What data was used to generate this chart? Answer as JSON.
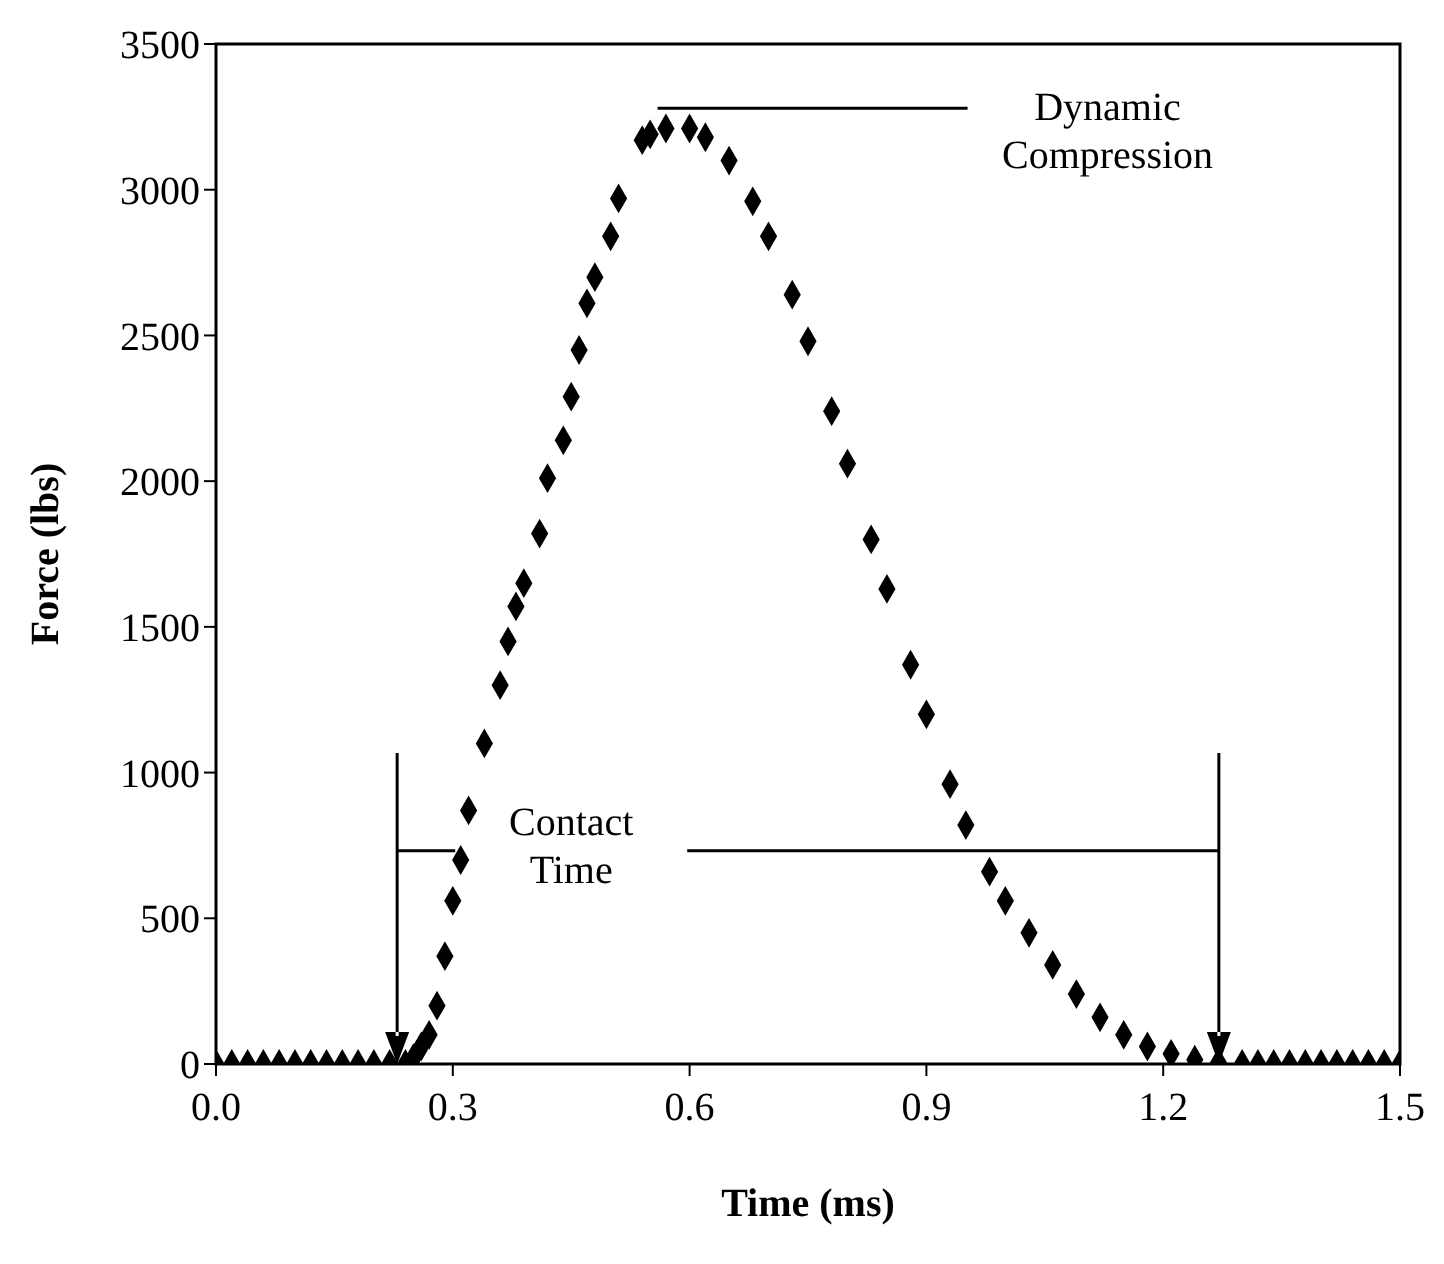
{
  "chart_data": {
    "type": "scatter",
    "xlabel": "Time (ms)",
    "ylabel": "Force (lbs)",
    "x": [
      0,
      0.02,
      0.04,
      0.06,
      0.08,
      0.1,
      0.12,
      0.14,
      0.16,
      0.18,
      0.2,
      0.22,
      0.24,
      0.25,
      0.26,
      0.27,
      0.28,
      0.29,
      0.3,
      0.31,
      0.32,
      0.34,
      0.36,
      0.37,
      0.38,
      0.39,
      0.41,
      0.42,
      0.44,
      0.45,
      0.46,
      0.47,
      0.48,
      0.5,
      0.51,
      0.54,
      0.55,
      0.57,
      0.6,
      0.62,
      0.65,
      0.68,
      0.7,
      0.73,
      0.75,
      0.78,
      0.8,
      0.83,
      0.85,
      0.88,
      0.9,
      0.93,
      0.95,
      0.98,
      1.0,
      1.03,
      1.06,
      1.09,
      1.12,
      1.15,
      1.18,
      1.21,
      1.24,
      1.27,
      1.3,
      1.32,
      1.34,
      1.36,
      1.38,
      1.4,
      1.42,
      1.44,
      1.46,
      1.48,
      1.5
    ],
    "values": [
      0,
      0,
      0,
      0,
      0,
      0,
      0,
      0,
      0,
      0,
      0,
      0,
      0,
      20,
      60,
      100,
      200,
      370,
      560,
      700,
      870,
      1100,
      1300,
      1450,
      1570,
      1650,
      1820,
      2010,
      2140,
      2290,
      2450,
      2610,
      2700,
      2840,
      2970,
      3170,
      3190,
      3210,
      3210,
      3180,
      3100,
      2960,
      2840,
      2640,
      2480,
      2240,
      2060,
      1800,
      1630,
      1370,
      1200,
      960,
      820,
      660,
      560,
      450,
      340,
      240,
      160,
      100,
      60,
      35,
      15,
      5,
      0,
      0,
      0,
      0,
      0,
      0,
      0,
      0,
      0,
      0,
      0
    ],
    "color": "#000000",
    "marker": "diamond",
    "xlim": [
      0,
      1.5
    ],
    "xticks": [
      {
        "value": 0,
        "label": "0.0"
      },
      {
        "value": 0.3,
        "label": "0.3"
      },
      {
        "value": 0.6,
        "label": "0.6"
      },
      {
        "value": 0.9,
        "label": "0.9"
      },
      {
        "value": 1.2,
        "label": "1.2"
      },
      {
        "value": 1.5,
        "label": "1.5"
      }
    ],
    "ylim": [
      0,
      3500
    ],
    "yticks": [
      0,
      500,
      1000,
      1500,
      2000,
      2500,
      3000,
      3500
    ],
    "annotations": [
      "Contact Time",
      "Dynamic Compression"
    ]
  }
}
